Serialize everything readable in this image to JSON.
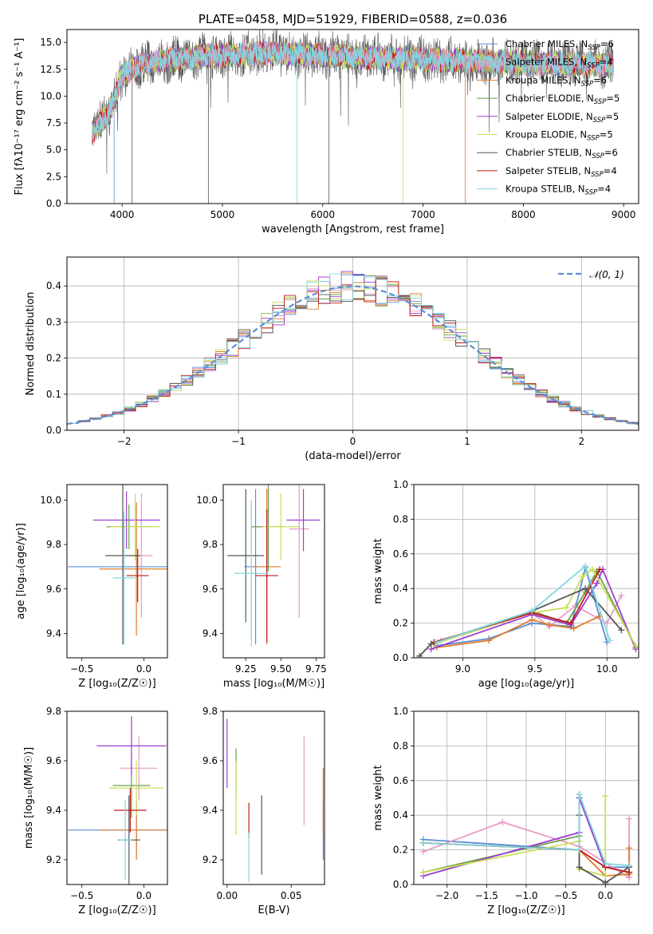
{
  "colors": [
    "#5b8ed6",
    "#e89ac7",
    "#e07b2a",
    "#6a9c4f",
    "#9d3fd0",
    "#c8e05a",
    "#555555",
    "#c01818",
    "#7fd8e0"
  ],
  "chart_data": [
    {
      "id": "spectrum",
      "type": "line",
      "title": "PLATE=0458, MJD=51929, FIBERID=0588, z=0.036",
      "xlabel": "wavelength [Angstrom, rest frame]",
      "ylabel": "Flux [fλ10⁻¹⁷ erg cm⁻² s⁻¹ A⁻¹]",
      "xlim": [
        3450,
        9150
      ],
      "ylim": [
        0,
        16.2
      ],
      "xticks": [
        4000,
        5000,
        6000,
        7000,
        8000,
        9000
      ],
      "yticks": [
        0.0,
        2.5,
        5.0,
        7.5,
        10.0,
        12.5,
        15.0
      ],
      "ytick_labels": [
        "0.0",
        "2.5",
        "5.0",
        "7.5",
        "10.0",
        "12.5",
        "15.0"
      ],
      "legend": [
        "Chabrier MILES, NSSP=6",
        "Salpeter MILES, NSSP=4",
        "Kroupa MILES, NSSP=6",
        "Chabrier ELODIE, NSSP=5",
        "Salpeter ELODIE, NSSP=5",
        "Kroupa ELODIE, NSSP=5",
        "Chabrier STELIB, NSSP=6",
        "Salpeter STELIB, NSSP=4",
        "Kroupa STELIB, NSSP=4"
      ],
      "legend_placement": "upper-right",
      "series_summary": {
        "data": {
          "x": [
            3700,
            3900,
            4000,
            4200,
            4500,
            5000,
            5500,
            6000,
            6500,
            7000,
            7500,
            8000,
            8500,
            8900
          ],
          "y": [
            6.5,
            9.0,
            12.0,
            13.0,
            13.5,
            13.8,
            14.0,
            13.8,
            13.6,
            13.4,
            13.2,
            13.1,
            13.0,
            12.9
          ]
        }
      }
    },
    {
      "id": "residuals",
      "type": "step-histogram",
      "xlabel": "(data-model)/error",
      "ylabel": "Normed distribution",
      "xlim": [
        -2.5,
        2.5
      ],
      "ylim": [
        0,
        0.48
      ],
      "xticks": [
        -2,
        -1,
        0,
        1,
        2
      ],
      "xtick_labels": [
        "−2",
        "−1",
        "0",
        "1",
        "2"
      ],
      "yticks": [
        0.0,
        0.1,
        0.2,
        0.3,
        0.4
      ],
      "ytick_labels": [
        "0.0",
        "0.1",
        "0.2",
        "0.3",
        "0.4"
      ],
      "legend": [
        "𝒩(0, 1)"
      ],
      "legend_placement": "upper-right",
      "gaussian": {
        "mean": 0,
        "sigma": 1
      },
      "bins": 50,
      "grid": true
    },
    {
      "id": "age-vs-Z",
      "type": "errorbar",
      "xlabel": "Z [log₁₀(Z/Z☉)]",
      "ylabel": "age  [log₁₀(age/yr)]",
      "xlim": [
        -0.62,
        0.19
      ],
      "ylim": [
        9.29,
        10.07
      ],
      "xticks": [
        -0.5,
        0.0
      ],
      "xtick_labels": [
        "−0.5",
        "0.0"
      ],
      "yticks": [
        9.4,
        9.6,
        9.8,
        10.0
      ],
      "ytick_labels": [
        "9.4",
        "9.6",
        "9.8",
        "10.0"
      ],
      "points": [
        {
          "x": -0.06,
          "xerr": 0.55,
          "y": 9.7,
          "yerr": 0.05
        },
        {
          "x": -0.02,
          "xerr": 0.09,
          "y": 9.75,
          "yerr": 0.28
        },
        {
          "x": -0.06,
          "xerr": 0.3,
          "y": 9.69,
          "yerr": 0.3
        },
        {
          "x": -0.12,
          "xerr": 0.18,
          "y": 9.88,
          "yerr": 0.1
        },
        {
          "x": -0.14,
          "xerr": 0.27,
          "y": 9.91,
          "yerr": 0.13
        },
        {
          "x": -0.07,
          "xerr": 0.2,
          "y": 9.88,
          "yerr": 0.15
        },
        {
          "x": -0.17,
          "xerr": 0.14,
          "y": 9.75,
          "yerr": 0.4
        },
        {
          "x": -0.05,
          "xerr": 0.09,
          "y": 9.66,
          "yerr": 0.12
        },
        {
          "x": -0.16,
          "xerr": 0.09,
          "y": 9.65,
          "yerr": 0.3
        }
      ]
    },
    {
      "id": "age-vs-mass",
      "type": "errorbar",
      "xlabel": "mass [log₁₀(M/M☉)]",
      "ylabel": "",
      "xlim": [
        9.09,
        9.81
      ],
      "ylim": [
        9.29,
        10.07
      ],
      "xticks": [
        9.25,
        9.5,
        9.75
      ],
      "xtick_labels": [
        "9.25",
        "9.50",
        "9.75"
      ],
      "yticks": [
        9.4,
        9.6,
        9.8,
        10.0
      ],
      "ytick_labels": [
        "9.4",
        "9.6",
        "9.8",
        "10.0"
      ],
      "points": [
        {
          "x": 9.32,
          "xerr": 0.08,
          "y": 9.7,
          "yerr": 0.35
        },
        {
          "x": 9.63,
          "xerr": 0.07,
          "y": 9.87,
          "yerr": 0.4
        },
        {
          "x": 9.4,
          "xerr": 0.1,
          "y": 9.7,
          "yerr": 0.35
        },
        {
          "x": 9.41,
          "xerr": 0.12,
          "y": 9.88,
          "yerr": 0.2
        },
        {
          "x": 9.66,
          "xerr": 0.12,
          "y": 9.91,
          "yerr": 0.14
        },
        {
          "x": 9.5,
          "xerr": 0.13,
          "y": 9.88,
          "yerr": 0.15
        },
        {
          "x": 9.25,
          "xerr": 0.13,
          "y": 9.75,
          "yerr": 0.3
        },
        {
          "x": 9.4,
          "xerr": 0.08,
          "y": 9.66,
          "yerr": 0.3
        },
        {
          "x": 9.29,
          "xerr": 0.12,
          "y": 9.67,
          "yerr": 0.33
        }
      ]
    },
    {
      "id": "mass-weight-vs-age",
      "type": "line",
      "xlabel": "age  [log₁₀(age/yr)]",
      "ylabel": "mass weight",
      "xlim": [
        8.66,
        10.22
      ],
      "ylim": [
        0.0,
        1.0
      ],
      "xticks": [
        9.0,
        9.5,
        10.0
      ],
      "xtick_labels": [
        "9.0",
        "9.5",
        "10.0"
      ],
      "yticks": [
        0.0,
        0.2,
        0.4,
        0.6,
        0.8,
        1.0
      ],
      "ytick_labels": [
        "0.0",
        "0.2",
        "0.4",
        "0.6",
        "0.8",
        "1.0"
      ],
      "grid": true,
      "series": [
        {
          "x": [
            8.82,
            9.18,
            9.48,
            9.75,
            9.85,
            10.0
          ],
          "y": [
            0.07,
            0.11,
            0.2,
            0.18,
            0.52,
            0.09
          ]
        },
        {
          "x": [
            8.85,
            9.48,
            9.6,
            9.78,
            10.0,
            10.1
          ],
          "y": [
            0.1,
            0.26,
            0.18,
            0.3,
            0.2,
            0.36
          ]
        },
        {
          "x": [
            8.82,
            9.18,
            9.48,
            9.6,
            9.77,
            9.95
          ],
          "y": [
            0.06,
            0.1,
            0.22,
            0.19,
            0.17,
            0.24
          ]
        },
        {
          "x": [
            8.8,
            9.48,
            9.72,
            9.85,
            9.93,
            10.2
          ],
          "y": [
            0.08,
            0.27,
            0.2,
            0.38,
            0.5,
            0.06
          ]
        },
        {
          "x": [
            8.78,
            9.48,
            9.75,
            9.93,
            9.97,
            10.2
          ],
          "y": [
            0.05,
            0.25,
            0.19,
            0.43,
            0.51,
            0.05
          ]
        },
        {
          "x": [
            8.8,
            9.48,
            9.72,
            9.83,
            9.9,
            10.2
          ],
          "y": [
            0.08,
            0.26,
            0.29,
            0.47,
            0.51,
            0.07
          ]
        },
        {
          "x": [
            8.7,
            8.78,
            9.48,
            9.85,
            10.1
          ],
          "y": [
            0.01,
            0.08,
            0.27,
            0.4,
            0.16
          ]
        },
        {
          "x": [
            8.8,
            9.48,
            9.75,
            9.95
          ],
          "y": [
            0.09,
            0.26,
            0.2,
            0.51
          ]
        },
        {
          "x": [
            8.82,
            9.48,
            9.85,
            10.02
          ],
          "y": [
            0.09,
            0.27,
            0.53,
            0.1
          ]
        }
      ]
    },
    {
      "id": "mass-vs-Z",
      "type": "errorbar",
      "xlabel": "Z [log₁₀(Z/Z☉)]",
      "ylabel": "mass [log₁₀(M/M☉)]",
      "xlim": [
        -0.62,
        0.19
      ],
      "ylim": [
        9.1,
        9.8
      ],
      "xticks": [
        -0.5,
        0.0
      ],
      "xtick_labels": [
        "−0.5",
        "0.0"
      ],
      "yticks": [
        9.2,
        9.4,
        9.6,
        9.8
      ],
      "ytick_labels": [
        "9.2",
        "9.4",
        "9.6",
        "9.8"
      ],
      "points": [
        {
          "x": -0.06,
          "xerr": 0.55,
          "y": 9.32,
          "yerr": 0.11
        },
        {
          "x": -0.04,
          "xerr": 0.15,
          "y": 9.57,
          "yerr": 0.13
        },
        {
          "x": -0.06,
          "xerr": 0.3,
          "y": 9.32,
          "yerr": 0.12
        },
        {
          "x": -0.1,
          "xerr": 0.15,
          "y": 9.5,
          "yerr": 0.13
        },
        {
          "x": -0.1,
          "xerr": 0.28,
          "y": 9.66,
          "yerr": 0.12
        },
        {
          "x": -0.06,
          "xerr": 0.22,
          "y": 9.49,
          "yerr": 0.11
        },
        {
          "x": -0.12,
          "xerr": 0.09,
          "y": 9.28,
          "yerr": 0.18
        },
        {
          "x": -0.11,
          "xerr": 0.13,
          "y": 9.4,
          "yerr": 0.09
        },
        {
          "x": -0.15,
          "xerr": 0.05,
          "y": 9.28,
          "yerr": 0.16
        }
      ]
    },
    {
      "id": "mass-vs-EBV",
      "type": "errorbar",
      "xlabel": "E(B-V)",
      "ylabel": "",
      "xlim": [
        -0.003,
        0.076
      ],
      "ylim": [
        9.1,
        9.8
      ],
      "xticks": [
        0.0,
        0.05
      ],
      "xtick_labels": [
        "0.00",
        "0.05"
      ],
      "yticks": [
        9.2,
        9.4,
        9.6,
        9.8
      ],
      "ytick_labels": [
        "9.2",
        "9.4",
        "9.6",
        "9.8"
      ],
      "points": [
        {
          "x": 0.075,
          "xerr": 0,
          "y": 9.32,
          "yerr": 0.12
        },
        {
          "x": 0.06,
          "xerr": 0,
          "y": 9.52,
          "yerr": 0.18
        },
        {
          "x": 0.075,
          "xerr": 0,
          "y": 9.43,
          "yerr": 0.14
        },
        {
          "x": 0.007,
          "xerr": 0,
          "y": 9.55,
          "yerr": 0.1
        },
        {
          "x": 0.0,
          "xerr": 0,
          "y": 9.63,
          "yerr": 0.14
        },
        {
          "x": 0.007,
          "xerr": 0,
          "y": 9.45,
          "yerr": 0.15
        },
        {
          "x": 0.027,
          "xerr": 0,
          "y": 9.3,
          "yerr": 0.16
        },
        {
          "x": 0.017,
          "xerr": 0,
          "y": 9.36,
          "yerr": 0.07
        },
        {
          "x": 0.017,
          "xerr": 0,
          "y": 9.21,
          "yerr": 0.1
        }
      ]
    },
    {
      "id": "mass-weight-vs-Z",
      "type": "line",
      "xlabel": "Z [log₁₀(Z/Z☉)]",
      "ylabel": "mass weight",
      "xlim": [
        -2.42,
        0.42
      ],
      "ylim": [
        0.0,
        1.0
      ],
      "xticks": [
        -2.0,
        -1.5,
        -1.0,
        -0.5,
        0.0
      ],
      "xtick_labels": [
        "−2.0",
        "−1.5",
        "−1.0",
        "−0.5",
        "0.0"
      ],
      "yticks": [
        0.0,
        0.2,
        0.4,
        0.6,
        0.8,
        1.0
      ],
      "ytick_labels": [
        "0.0",
        "0.2",
        "0.4",
        "0.6",
        "0.8",
        "1.0"
      ],
      "grid": true,
      "series": [
        {
          "x": [
            -2.3,
            -0.33,
            -0.33,
            0.0,
            0.3
          ],
          "y": [
            0.26,
            0.2,
            0.52,
            0.1,
            0.1
          ]
        },
        {
          "x": [
            -2.3,
            -1.3,
            -0.33,
            0.3,
            0.3
          ],
          "y": [
            0.19,
            0.36,
            0.22,
            0.04,
            0.38
          ]
        },
        {
          "x": [
            -2.3,
            -0.33,
            0.0,
            0.3,
            0.3
          ],
          "y": [
            0.24,
            0.2,
            0.05,
            0.06,
            0.21
          ]
        },
        {
          "x": [
            -2.3,
            -0.33,
            -0.33,
            0.0,
            0.3
          ],
          "y": [
            0.07,
            0.28,
            0.5,
            0.1,
            0.07
          ]
        },
        {
          "x": [
            -2.3,
            -0.33,
            -0.33,
            0.0
          ],
          "y": [
            0.05,
            0.3,
            0.5,
            0.1
          ]
        },
        {
          "x": [
            -2.3,
            -0.33,
            -0.33,
            0.0,
            0.0
          ],
          "y": [
            0.07,
            0.25,
            0.09,
            0.05,
            0.51
          ]
        },
        {
          "x": [
            -0.33,
            -0.33,
            0.0,
            0.3
          ],
          "y": [
            0.4,
            0.1,
            0.01,
            0.1
          ]
        },
        {
          "x": [
            -2.3,
            -0.33,
            0.0,
            0.3
          ],
          "y": [
            0.24,
            0.2,
            0.1,
            0.07
          ]
        },
        {
          "x": [
            -2.3,
            -0.33,
            -0.33,
            0.0,
            0.3
          ],
          "y": [
            0.24,
            0.2,
            0.52,
            0.12,
            0.11
          ]
        }
      ]
    }
  ]
}
